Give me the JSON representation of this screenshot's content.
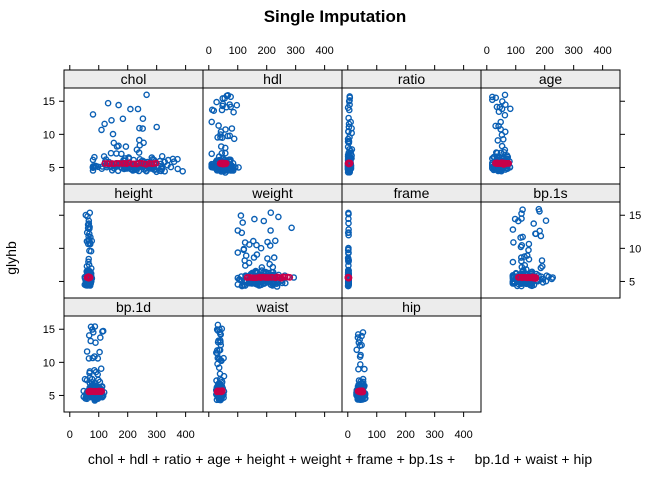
{
  "chart_data": {
    "type": "scatter",
    "title": "Single Imputation",
    "xlabel": "chol + hdl + ratio + age + height + weight + frame + bp.1s +     bp.1d + waist + hip",
    "ylabel": "glyhb",
    "xlim": [
      -20,
      460
    ],
    "ylim": [
      2.5,
      17
    ],
    "x_ticks": [
      0,
      100,
      200,
      300,
      400
    ],
    "y_ticks": [
      5,
      10,
      15
    ],
    "grid": false,
    "layout": {
      "columns": 4,
      "rows": 3
    },
    "colors": {
      "observed": "#0a5fb4",
      "imputed": "#c8004b",
      "strip": "#ececec",
      "frame": "#000000"
    },
    "panels": [
      {
        "name": "chol",
        "observed_x_range": [
          80,
          440
        ],
        "observed_center": 210,
        "imputed_x": [
          120,
          300
        ],
        "imputed_y": 5.6
      },
      {
        "name": "hdl",
        "observed_x_range": [
          10,
          120
        ],
        "observed_center": 50,
        "imputed_x": [
          40,
          60
        ],
        "imputed_y": 5.6
      },
      {
        "name": "ratio",
        "observed_x_range": [
          1,
          20
        ],
        "observed_center": 5,
        "imputed_x": [
          3,
          7
        ],
        "imputed_y": 5.6
      },
      {
        "name": "age",
        "observed_x_range": [
          19,
          92
        ],
        "observed_center": 47,
        "imputed_x": [
          30,
          75
        ],
        "imputed_y": 5.6
      },
      {
        "name": "height",
        "observed_x_range": [
          52,
          76
        ],
        "observed_center": 66,
        "imputed_x": [
          60,
          70
        ],
        "imputed_y": 5.6
      },
      {
        "name": "weight",
        "observed_x_range": [
          100,
          320
        ],
        "observed_center": 180,
        "imputed_x": [
          130,
          280
        ],
        "imputed_y": 5.6
      },
      {
        "name": "frame",
        "observed_x_range": [
          1,
          3
        ],
        "observed_center": 2,
        "imputed_x": [
          1,
          3
        ],
        "imputed_y": 5.6
      },
      {
        "name": "bp.1s",
        "observed_x_range": [
          90,
          250
        ],
        "observed_center": 137,
        "imputed_x": [
          110,
          170
        ],
        "imputed_y": 5.6
      },
      {
        "name": "bp.1d",
        "observed_x_range": [
          48,
          124
        ],
        "observed_center": 84,
        "imputed_x": [
          65,
          110
        ],
        "imputed_y": 5.6
      },
      {
        "name": "waist",
        "observed_x_range": [
          26,
          56
        ],
        "observed_center": 38,
        "imputed_x": [
          30,
          46
        ],
        "imputed_y": 5.6
      },
      {
        "name": "hip",
        "observed_x_range": [
          30,
          64
        ],
        "observed_center": 43,
        "imputed_x": [
          36,
          52
        ],
        "imputed_y": 5.6
      }
    ]
  }
}
